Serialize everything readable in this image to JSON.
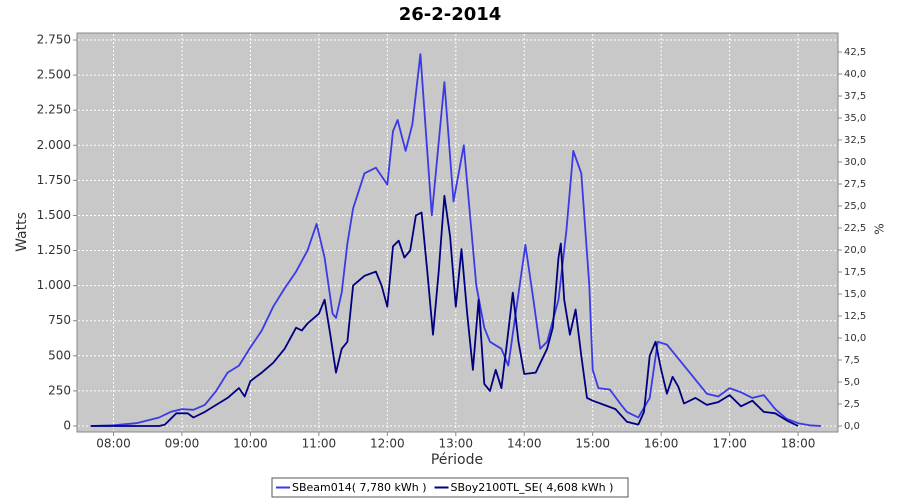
{
  "chart_data": {
    "type": "line",
    "title": "26-2-2014",
    "xlabel": "Période",
    "ylabel": "Watts",
    "y2label": "%",
    "xlim": [
      "07:28",
      "18:35"
    ],
    "xticks": [
      "08:00",
      "09:00",
      "10:00",
      "11:00",
      "12:00",
      "13:00",
      "14:00",
      "15:00",
      "16:00",
      "17:00",
      "18:00"
    ],
    "ylim": [
      -43,
      2800
    ],
    "yticks": [
      0,
      250,
      500,
      750,
      {
        "value": 1000,
        "label": "1.000"
      },
      {
        "value": 1250,
        "label": "1.250"
      },
      {
        "value": 1500,
        "label": "1.500"
      },
      {
        "value": 1750,
        "label": "1.750"
      },
      {
        "value": 2000,
        "label": "2.000"
      },
      {
        "value": 2250,
        "label": "2.250"
      },
      {
        "value": 2500,
        "label": "2.500"
      },
      {
        "value": 2750,
        "label": "2.750"
      }
    ],
    "y2lim": [
      -0.68,
      44.66
    ],
    "y2ticks": [
      {
        "value": 0,
        "label": "0,0"
      },
      {
        "value": 2.5,
        "label": "2,5"
      },
      {
        "value": 5,
        "label": "5,0"
      },
      {
        "value": 7.5,
        "label": "7,5"
      },
      {
        "value": 10,
        "label": "10,0"
      },
      {
        "value": 12.5,
        "label": "12,5"
      },
      {
        "value": 15,
        "label": "15,0"
      },
      {
        "value": 17.5,
        "label": "17,5"
      },
      {
        "value": 20,
        "label": "20,0"
      },
      {
        "value": 22.5,
        "label": "22,5"
      },
      {
        "value": 25,
        "label": "25,0"
      },
      {
        "value": 27.5,
        "label": "27,5"
      },
      {
        "value": 30,
        "label": "30,0"
      },
      {
        "value": 32.5,
        "label": "32,5"
      },
      {
        "value": 35,
        "label": "35,0"
      },
      {
        "value": 37.5,
        "label": "37,5"
      },
      {
        "value": 40,
        "label": "40,0"
      },
      {
        "value": 42.5,
        "label": "42,5"
      }
    ],
    "grid": true,
    "legend": "bottom",
    "series": [
      {
        "name": "SBeam014( 7,780 kWh )",
        "color": "#3a3ae6",
        "x": [
          "07:40",
          "08:00",
          "08:20",
          "08:40",
          "08:50",
          "09:00",
          "09:10",
          "09:20",
          "09:30",
          "09:40",
          "09:50",
          "10:00",
          "10:10",
          "10:20",
          "10:30",
          "10:40",
          "10:50",
          "10:58",
          "11:05",
          "11:12",
          "11:15",
          "11:20",
          "11:25",
          "11:30",
          "11:40",
          "11:50",
          "12:00",
          "12:05",
          "12:09",
          "12:16",
          "12:22",
          "12:29",
          "12:39",
          "12:50",
          "12:58",
          "13:07",
          "13:18",
          "13:25",
          "13:30",
          "13:40",
          "13:46",
          "14:01",
          "14:08",
          "14:14",
          "14:20",
          "14:30",
          "14:37",
          "14:43",
          "14:50",
          "14:57",
          "15:00",
          "15:05",
          "15:15",
          "15:25",
          "15:30",
          "15:40",
          "15:50",
          "15:57",
          "16:05",
          "16:15",
          "16:25",
          "16:40",
          "16:50",
          "17:00",
          "17:10",
          "17:20",
          "17:30",
          "17:40",
          "17:50",
          "18:00",
          "18:10",
          "18:20"
        ],
        "values": [
          0,
          5,
          20,
          60,
          100,
          120,
          115,
          150,
          250,
          380,
          430,
          560,
          680,
          850,
          980,
          1100,
          1250,
          1440,
          1200,
          800,
          770,
          950,
          1300,
          1550,
          1800,
          1840,
          1720,
          2100,
          2180,
          1960,
          2150,
          2650,
          1500,
          2450,
          1600,
          2000,
          1000,
          700,
          600,
          550,
          430,
          1290,
          900,
          550,
          600,
          900,
          1400,
          1960,
          1800,
          1000,
          400,
          270,
          260,
          150,
          100,
          60,
          200,
          600,
          580,
          480,
          380,
          230,
          210,
          270,
          240,
          200,
          220,
          120,
          50,
          20,
          5,
          0
        ]
      },
      {
        "name": "SBoy2100TL_SE( 4,608 kWh )",
        "color": "#000080",
        "x": [
          "07:40",
          "08:00",
          "08:40",
          "08:45",
          "08:55",
          "09:05",
          "09:10",
          "09:20",
          "09:30",
          "09:40",
          "09:50",
          "09:55",
          "10:00",
          "10:10",
          "10:20",
          "10:30",
          "10:40",
          "10:45",
          "10:50",
          "11:00",
          "11:05",
          "11:10",
          "11:15",
          "11:20",
          "11:25",
          "11:30",
          "11:40",
          "11:50",
          "11:55",
          "12:00",
          "12:05",
          "12:10",
          "12:15",
          "12:20",
          "12:25",
          "12:30",
          "12:35",
          "12:40",
          "12:45",
          "12:50",
          "12:55",
          "13:00",
          "13:05",
          "13:10",
          "13:15",
          "13:20",
          "13:25",
          "13:30",
          "13:35",
          "13:40",
          "13:45",
          "13:50",
          "13:55",
          "14:00",
          "14:10",
          "14:20",
          "14:25",
          "14:30",
          "14:32",
          "14:35",
          "14:40",
          "14:45",
          "14:50",
          "14:55",
          "15:00",
          "15:10",
          "15:20",
          "15:30",
          "15:40",
          "15:45",
          "15:50",
          "15:55",
          "16:00",
          "16:05",
          "16:10",
          "16:15",
          "16:20",
          "16:30",
          "16:40",
          "16:50",
          "17:00",
          "17:10",
          "17:20",
          "17:30",
          "17:40",
          "17:50",
          "18:00"
        ],
        "values": [
          0,
          0,
          0,
          10,
          90,
          90,
          60,
          100,
          150,
          200,
          270,
          210,
          320,
          380,
          450,
          550,
          700,
          680,
          730,
          800,
          900,
          650,
          380,
          550,
          600,
          1000,
          1070,
          1100,
          1000,
          850,
          1280,
          1320,
          1200,
          1250,
          1500,
          1520,
          1100,
          650,
          1100,
          1640,
          1350,
          850,
          1260,
          800,
          400,
          900,
          300,
          250,
          400,
          270,
          600,
          950,
          600,
          370,
          380,
          550,
          700,
          1200,
          1300,
          900,
          650,
          830,
          500,
          200,
          180,
          150,
          120,
          30,
          10,
          100,
          500,
          600,
          400,
          230,
          350,
          280,
          160,
          200,
          150,
          170,
          220,
          140,
          180,
          100,
          90,
          40,
          0
        ]
      }
    ]
  }
}
